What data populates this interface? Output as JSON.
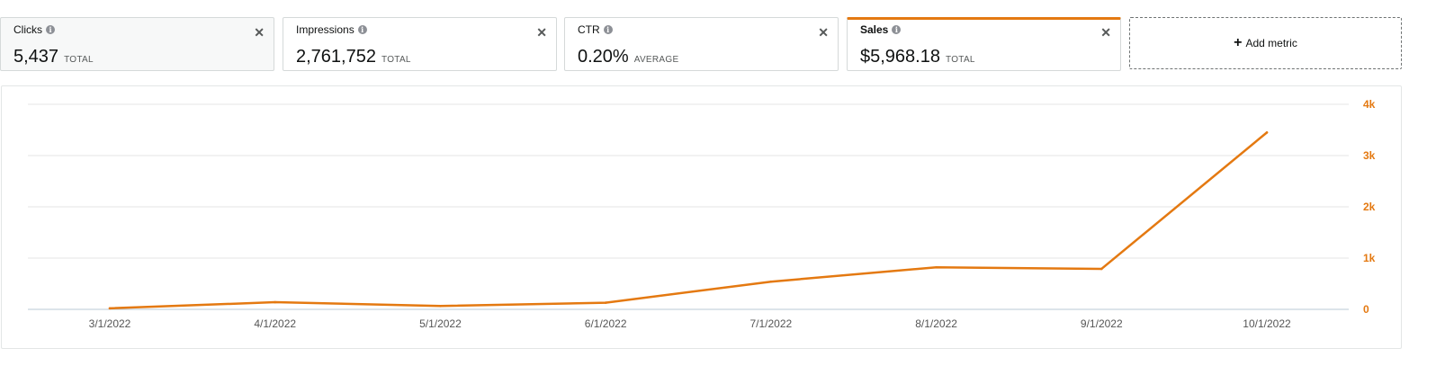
{
  "metrics": [
    {
      "name": "Clicks",
      "value": "5,437",
      "aggregation": "TOTAL"
    },
    {
      "name": "Impressions",
      "value": "2,761,752",
      "aggregation": "TOTAL"
    },
    {
      "name": "CTR",
      "value": "0.20%",
      "aggregation": "AVERAGE"
    },
    {
      "name": "Sales",
      "value": "$5,968.18",
      "aggregation": "TOTAL"
    }
  ],
  "add_metric_label": "Add metric",
  "icons": {
    "info": "info-icon",
    "close": "close-icon",
    "add": "plus-icon"
  },
  "colors": {
    "accent": "#e47911"
  },
  "chart_data": {
    "type": "line",
    "x": [
      "3/1/2022",
      "4/1/2022",
      "5/1/2022",
      "6/1/2022",
      "7/1/2022",
      "8/1/2022",
      "9/1/2022",
      "10/1/2022"
    ],
    "series": [
      {
        "name": "Sales",
        "values": [
          20,
          140,
          65,
          130,
          540,
          820,
          790,
          3450
        ],
        "color": "#e47911"
      }
    ],
    "y_ticks": [
      "0",
      "1k",
      "2k",
      "3k",
      "4k"
    ],
    "ylim": [
      0,
      4000
    ],
    "y_axis_side": "right",
    "grid": true
  }
}
